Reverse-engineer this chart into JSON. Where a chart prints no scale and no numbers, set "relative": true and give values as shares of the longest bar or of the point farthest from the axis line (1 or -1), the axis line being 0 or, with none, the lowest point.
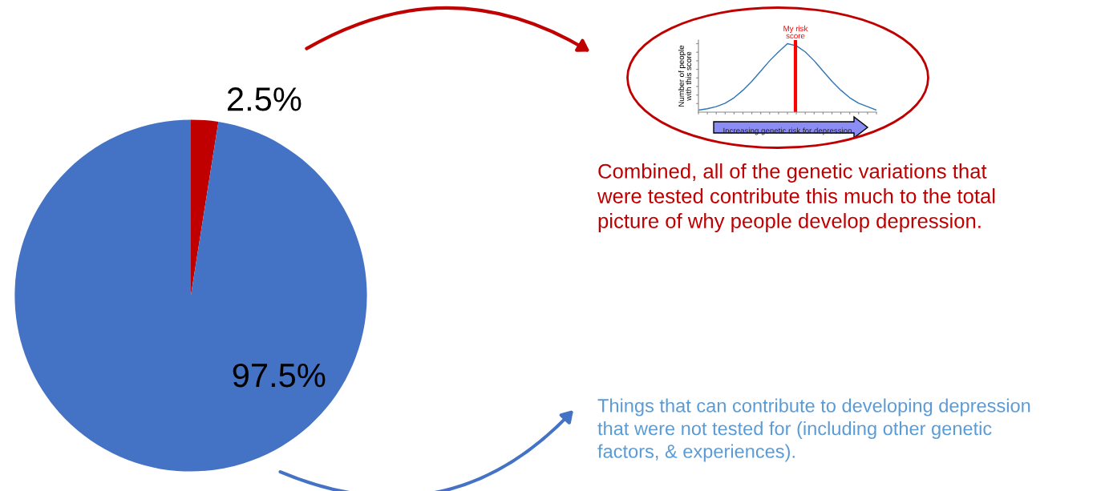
{
  "chart_data": [
    {
      "type": "pie",
      "categories": [
        null,
        null
      ],
      "values": [
        2.5,
        97.5
      ],
      "colors": [
        "#c00000",
        "#4472c4"
      ],
      "value_labels": [
        "2.5%",
        "97.5%"
      ],
      "annotations": [
        "Combined, all of the genetic variations that\nwere tested contribute this much to the total\npicture of why people develop depression.",
        "Things that can contribute to developing depression\nthat were not tested for (including other genetic\nfactors, & experiences)."
      ]
    },
    {
      "type": "line",
      "relative": true,
      "tick_labels": false,
      "xlabel": "Increasing genetic risk for depression",
      "ylabel": "Number of people\nwith this score",
      "categories": [
        null,
        null,
        null,
        null,
        null,
        null,
        null,
        null,
        null,
        null,
        null,
        null,
        null,
        null,
        null,
        null,
        null,
        null,
        null,
        null,
        null
      ],
      "series": [
        {
          "color": "#2e75b6",
          "values": [
            0.03,
            0.05,
            0.08,
            0.13,
            0.21,
            0.32,
            0.45,
            0.6,
            0.75,
            0.88,
            1.0,
            0.97,
            0.88,
            0.75,
            0.6,
            0.45,
            0.32,
            0.21,
            0.13,
            0.08,
            0.03
          ]
        }
      ],
      "annotations": [
        "My risk\nscore"
      ]
    }
  ]
}
